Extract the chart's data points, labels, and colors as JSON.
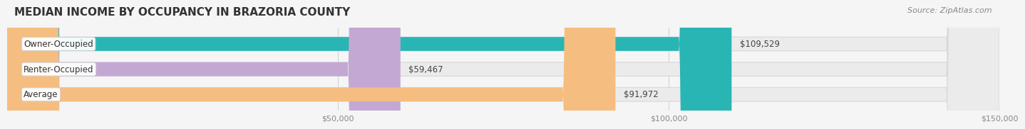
{
  "title": "MEDIAN INCOME BY OCCUPANCY IN BRAZORIA COUNTY",
  "source": "Source: ZipAtlas.com",
  "categories": [
    "Owner-Occupied",
    "Renter-Occupied",
    "Average"
  ],
  "values": [
    109529,
    59467,
    91972
  ],
  "bar_colors": [
    "#2ab5b5",
    "#c4a8d4",
    "#f5be80"
  ],
  "label_texts": [
    "$109,529",
    "$59,467",
    "$91,972"
  ],
  "xlim": [
    0,
    150000
  ],
  "xticks": [
    0,
    50000,
    100000,
    150000
  ],
  "xticklabels": [
    "",
    "$50,000",
    "$100,000",
    "$150,000"
  ],
  "bg_color": "#f5f5f5",
  "bar_bg_color": "#ebebeb",
  "bar_height": 0.55,
  "title_fontsize": 11,
  "label_fontsize": 8.5,
  "tick_fontsize": 8,
  "source_fontsize": 8
}
